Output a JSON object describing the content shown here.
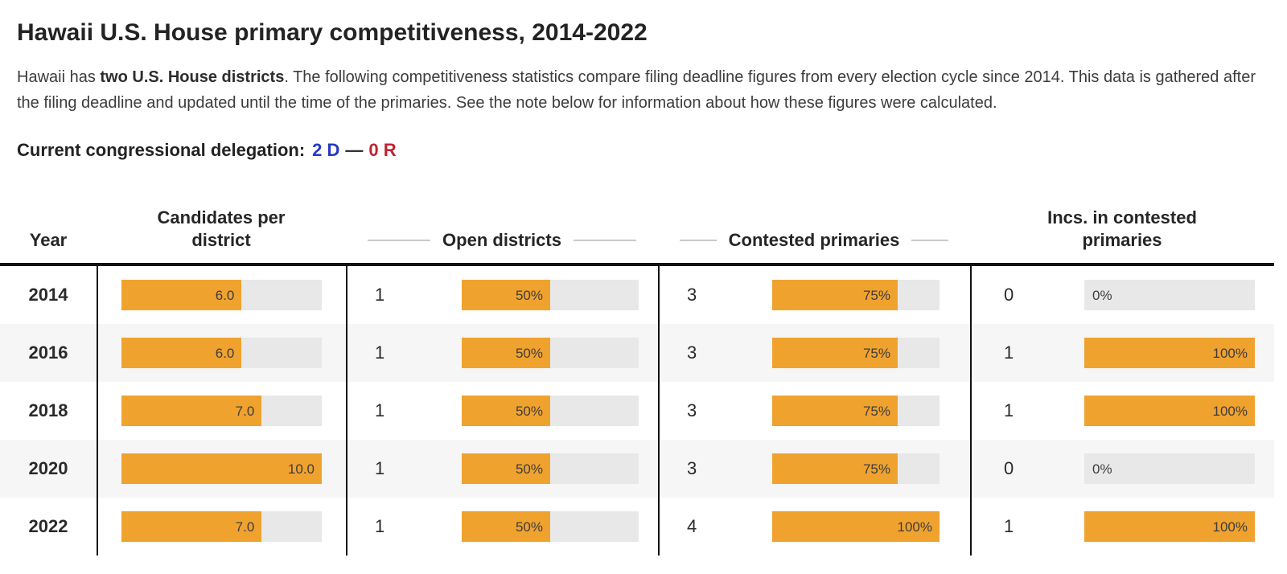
{
  "page": {
    "title": "Hawaii U.S. House primary competitiveness, 2014-2022",
    "intro_prefix": "Hawaii has ",
    "intro_bold": "two U.S. House districts",
    "intro_suffix": ". The following competitiveness statistics compare filing deadline figures from every election cycle since 2014. This data is gathered after the filing deadline and updated until the time of the primaries. See the note below for information about how these figures were calculated.",
    "delegation_label": "Current congressional delegation:",
    "delegation_dem": "2 D",
    "delegation_sep": "—",
    "delegation_rep": "0 R"
  },
  "colors": {
    "bar_fill": "#f0a22f",
    "bar_track": "#e8e8e8",
    "dem_blue": "#2639c2",
    "rep_red": "#bf2130",
    "row_alt": "#f6f6f6",
    "table_rule": "#111111",
    "header_decor_line": "#c9c9c9"
  },
  "table": {
    "headers": {
      "year": "Year",
      "candidates": "Candidates per district",
      "open": "Open districts",
      "contested": "Contested primaries",
      "incs": "Incs. in contested primaries"
    },
    "rows": [
      {
        "year": "2014",
        "candidates": {
          "label": "6.0",
          "pct": 60
        },
        "open": {
          "count": "1",
          "bar": {
            "label": "50%",
            "pct": 50
          }
        },
        "contested": {
          "count": "3",
          "bar": {
            "label": "75%",
            "pct": 75
          }
        },
        "incs": {
          "count": "0",
          "bar": {
            "label": "0%",
            "pct": 0
          }
        }
      },
      {
        "year": "2016",
        "candidates": {
          "label": "6.0",
          "pct": 60
        },
        "open": {
          "count": "1",
          "bar": {
            "label": "50%",
            "pct": 50
          }
        },
        "contested": {
          "count": "3",
          "bar": {
            "label": "75%",
            "pct": 75
          }
        },
        "incs": {
          "count": "1",
          "bar": {
            "label": "100%",
            "pct": 100
          }
        }
      },
      {
        "year": "2018",
        "candidates": {
          "label": "7.0",
          "pct": 70
        },
        "open": {
          "count": "1",
          "bar": {
            "label": "50%",
            "pct": 50
          }
        },
        "contested": {
          "count": "3",
          "bar": {
            "label": "75%",
            "pct": 75
          }
        },
        "incs": {
          "count": "1",
          "bar": {
            "label": "100%",
            "pct": 100
          }
        }
      },
      {
        "year": "2020",
        "candidates": {
          "label": "10.0",
          "pct": 100
        },
        "open": {
          "count": "1",
          "bar": {
            "label": "50%",
            "pct": 50
          }
        },
        "contested": {
          "count": "3",
          "bar": {
            "label": "75%",
            "pct": 75
          }
        },
        "incs": {
          "count": "0",
          "bar": {
            "label": "0%",
            "pct": 0
          }
        }
      },
      {
        "year": "2022",
        "candidates": {
          "label": "7.0",
          "pct": 70
        },
        "open": {
          "count": "1",
          "bar": {
            "label": "50%",
            "pct": 50
          }
        },
        "contested": {
          "count": "4",
          "bar": {
            "label": "100%",
            "pct": 100
          }
        },
        "incs": {
          "count": "1",
          "bar": {
            "label": "100%",
            "pct": 100
          }
        }
      }
    ]
  },
  "chart_data": {
    "type": "table",
    "title": "Hawaii U.S. House primary competitiveness, 2014-2022",
    "categories": [
      "2014",
      "2016",
      "2018",
      "2020",
      "2022"
    ],
    "series": [
      {
        "name": "Candidates per district",
        "values": [
          6.0,
          6.0,
          7.0,
          10.0,
          7.0
        ],
        "bar_scale_max": 10
      },
      {
        "name": "Open districts (count)",
        "values": [
          1,
          1,
          1,
          1,
          1
        ]
      },
      {
        "name": "Open districts (percent)",
        "values": [
          50,
          50,
          50,
          50,
          50
        ]
      },
      {
        "name": "Contested primaries (count)",
        "values": [
          3,
          3,
          3,
          3,
          4
        ]
      },
      {
        "name": "Contested primaries (percent)",
        "values": [
          75,
          75,
          75,
          75,
          100
        ]
      },
      {
        "name": "Incumbents in contested primaries (count)",
        "values": [
          0,
          1,
          1,
          0,
          1
        ]
      },
      {
        "name": "Incumbents in contested primaries (percent)",
        "values": [
          0,
          100,
          100,
          0,
          100
        ]
      }
    ],
    "bar_color": "#f0a22f",
    "track_color": "#e8e8e8",
    "grid": false,
    "legend_position": "none"
  }
}
